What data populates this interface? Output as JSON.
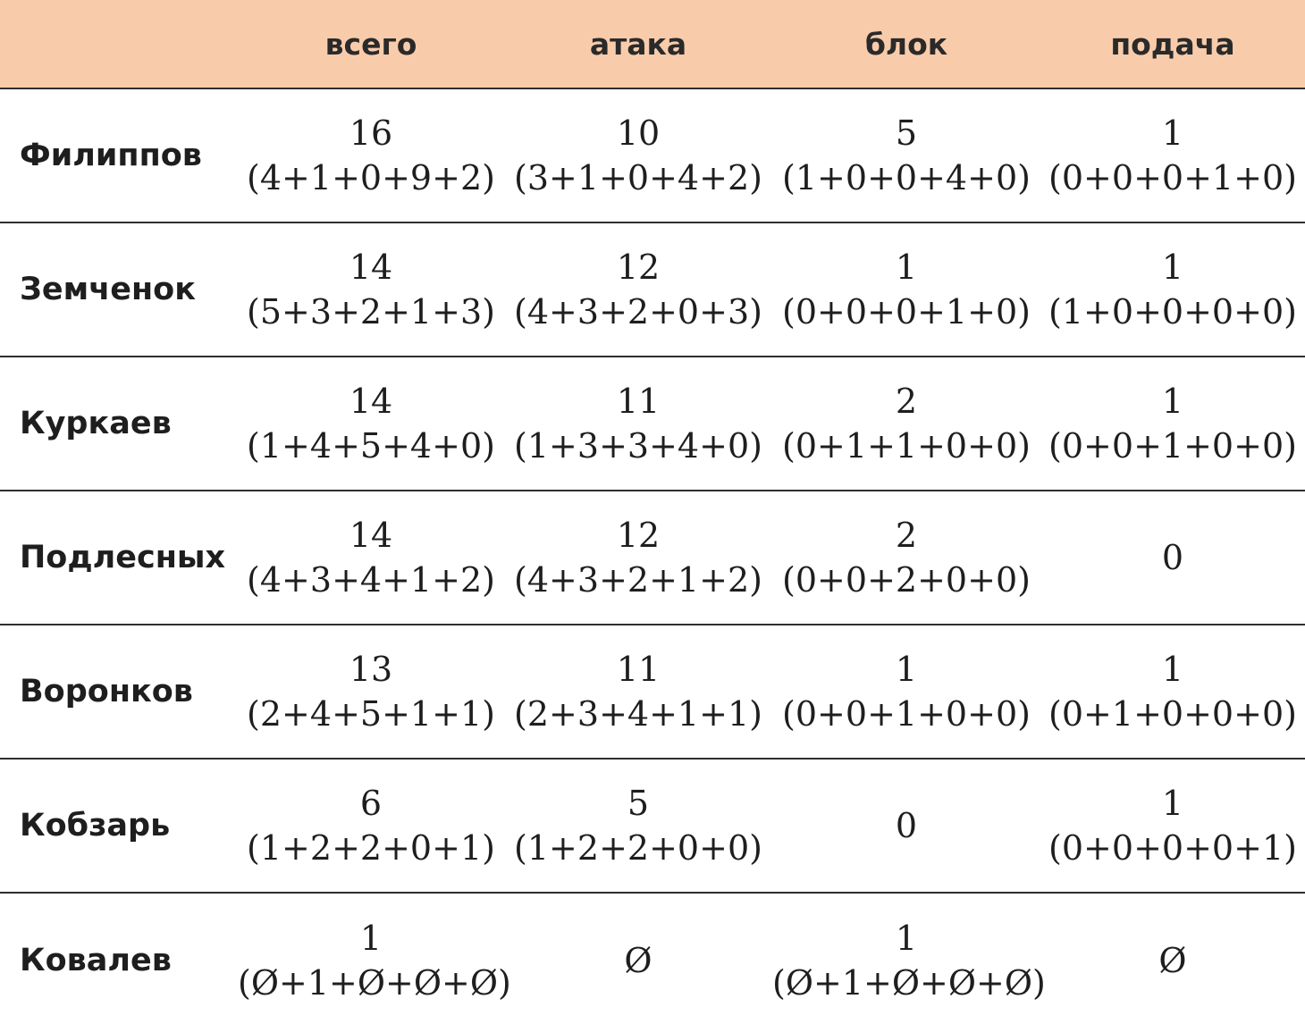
{
  "header": {
    "name_col": "",
    "total": "всего",
    "attack": "атака",
    "block": "блок",
    "serve": "подача"
  },
  "rows": [
    {
      "name": "Филиппов",
      "total": {
        "value": "16",
        "breakdown": "(4+1+0+9+2)"
      },
      "attack": {
        "value": "10",
        "breakdown": "(3+1+0+4+2)"
      },
      "block": {
        "value": "5",
        "breakdown": "(1+0+0+4+0)"
      },
      "serve": {
        "value": "1",
        "breakdown": "(0+0+0+1+0)"
      }
    },
    {
      "name": "Земченок",
      "total": {
        "value": "14",
        "breakdown": "(5+3+2+1+3)"
      },
      "attack": {
        "value": "12",
        "breakdown": "(4+3+2+0+3)"
      },
      "block": {
        "value": "1",
        "breakdown": "(0+0+0+1+0)"
      },
      "serve": {
        "value": "1",
        "breakdown": "(1+0+0+0+0)"
      }
    },
    {
      "name": "Куркаев",
      "total": {
        "value": "14",
        "breakdown": "(1+4+5+4+0)"
      },
      "attack": {
        "value": "11",
        "breakdown": "(1+3+3+4+0)"
      },
      "block": {
        "value": "2",
        "breakdown": "(0+1+1+0+0)"
      },
      "serve": {
        "value": "1",
        "breakdown": "(0+0+1+0+0)"
      }
    },
    {
      "name": "Подлесных",
      "total": {
        "value": "14",
        "breakdown": "(4+3+4+1+2)"
      },
      "attack": {
        "value": "12",
        "breakdown": "(4+3+2+1+2)"
      },
      "block": {
        "value": "2",
        "breakdown": "(0+0+2+0+0)"
      },
      "serve": {
        "value": "0",
        "breakdown": ""
      }
    },
    {
      "name": "Воронков",
      "total": {
        "value": "13",
        "breakdown": "(2+4+5+1+1)"
      },
      "attack": {
        "value": "11",
        "breakdown": "(2+3+4+1+1)"
      },
      "block": {
        "value": "1",
        "breakdown": "(0+0+1+0+0)"
      },
      "serve": {
        "value": "1",
        "breakdown": "(0+1+0+0+0)"
      }
    },
    {
      "name": "Кобзарь",
      "total": {
        "value": "6",
        "breakdown": "(1+2+2+0+1)"
      },
      "attack": {
        "value": "5",
        "breakdown": "(1+2+2+0+0)"
      },
      "block": {
        "value": "0",
        "breakdown": ""
      },
      "serve": {
        "value": "1",
        "breakdown": "(0+0+0+0+1)"
      }
    },
    {
      "name": "Ковалев",
      "total": {
        "value": "1",
        "breakdown": "(Ø+1+Ø+Ø+Ø)"
      },
      "attack": {
        "value": "Ø",
        "breakdown": ""
      },
      "block": {
        "value": "1",
        "breakdown": "(Ø+1+Ø+Ø+Ø)"
      },
      "serve": {
        "value": "Ø",
        "breakdown": ""
      }
    }
  ]
}
